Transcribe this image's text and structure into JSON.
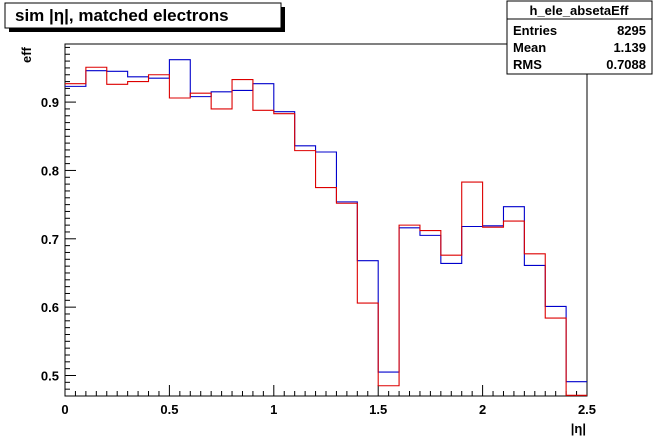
{
  "chart_data": {
    "type": "line",
    "title": "sim |η|, matched electrons",
    "xlabel": "|η|",
    "ylabel": "eff",
    "xlim": [
      0,
      2.5
    ],
    "ylim": [
      0.47,
      0.985
    ],
    "xticks_major": [
      0,
      0.5,
      1,
      1.5,
      2,
      2.5
    ],
    "xtick_labels": [
      "0",
      "0.5",
      "1",
      "1.5",
      "2",
      "2.5"
    ],
    "yticks_major": [
      0.5,
      0.6,
      0.7,
      0.8,
      0.9
    ],
    "ytick_labels": [
      "0.5",
      "0.6",
      "0.7",
      "0.8",
      "0.9"
    ],
    "grid": false,
    "legend": "none",
    "style": "histogram-step",
    "bin_edges": [
      0,
      0.1,
      0.2,
      0.3,
      0.4,
      0.5,
      0.6,
      0.7,
      0.8,
      0.9,
      1.0,
      1.1,
      1.2,
      1.3,
      1.4,
      1.5,
      1.6,
      1.7,
      1.8,
      1.9,
      2.0,
      2.1,
      2.2,
      2.3,
      2.4,
      2.5
    ],
    "series": [
      {
        "color": "#0000cc",
        "values": [
          0.923,
          0.946,
          0.945,
          0.937,
          0.935,
          0.962,
          0.908,
          0.915,
          0.917,
          0.927,
          0.886,
          0.836,
          0.827,
          0.754,
          0.668,
          0.505,
          0.716,
          0.705,
          0.664,
          0.718,
          0.719,
          0.747,
          0.661,
          0.601,
          0.491
        ]
      },
      {
        "color": "#dd0000",
        "values": [
          0.927,
          0.951,
          0.926,
          0.93,
          0.94,
          0.906,
          0.913,
          0.89,
          0.933,
          0.888,
          0.883,
          0.829,
          0.775,
          0.752,
          0.606,
          0.485,
          0.72,
          0.712,
          0.676,
          0.783,
          0.717,
          0.726,
          0.678,
          0.584,
          0.471
        ]
      }
    ],
    "stats_box": {
      "name": "h_ele_absetaEff",
      "rows": [
        {
          "label": "Entries",
          "value": "8295"
        },
        {
          "label": "Mean",
          "value": "1.139"
        },
        {
          "label": "RMS",
          "value": "0.7088"
        }
      ]
    }
  },
  "colors": {
    "frame": "#000000",
    "background": "#ffffff",
    "title_shadow": "#000000"
  }
}
